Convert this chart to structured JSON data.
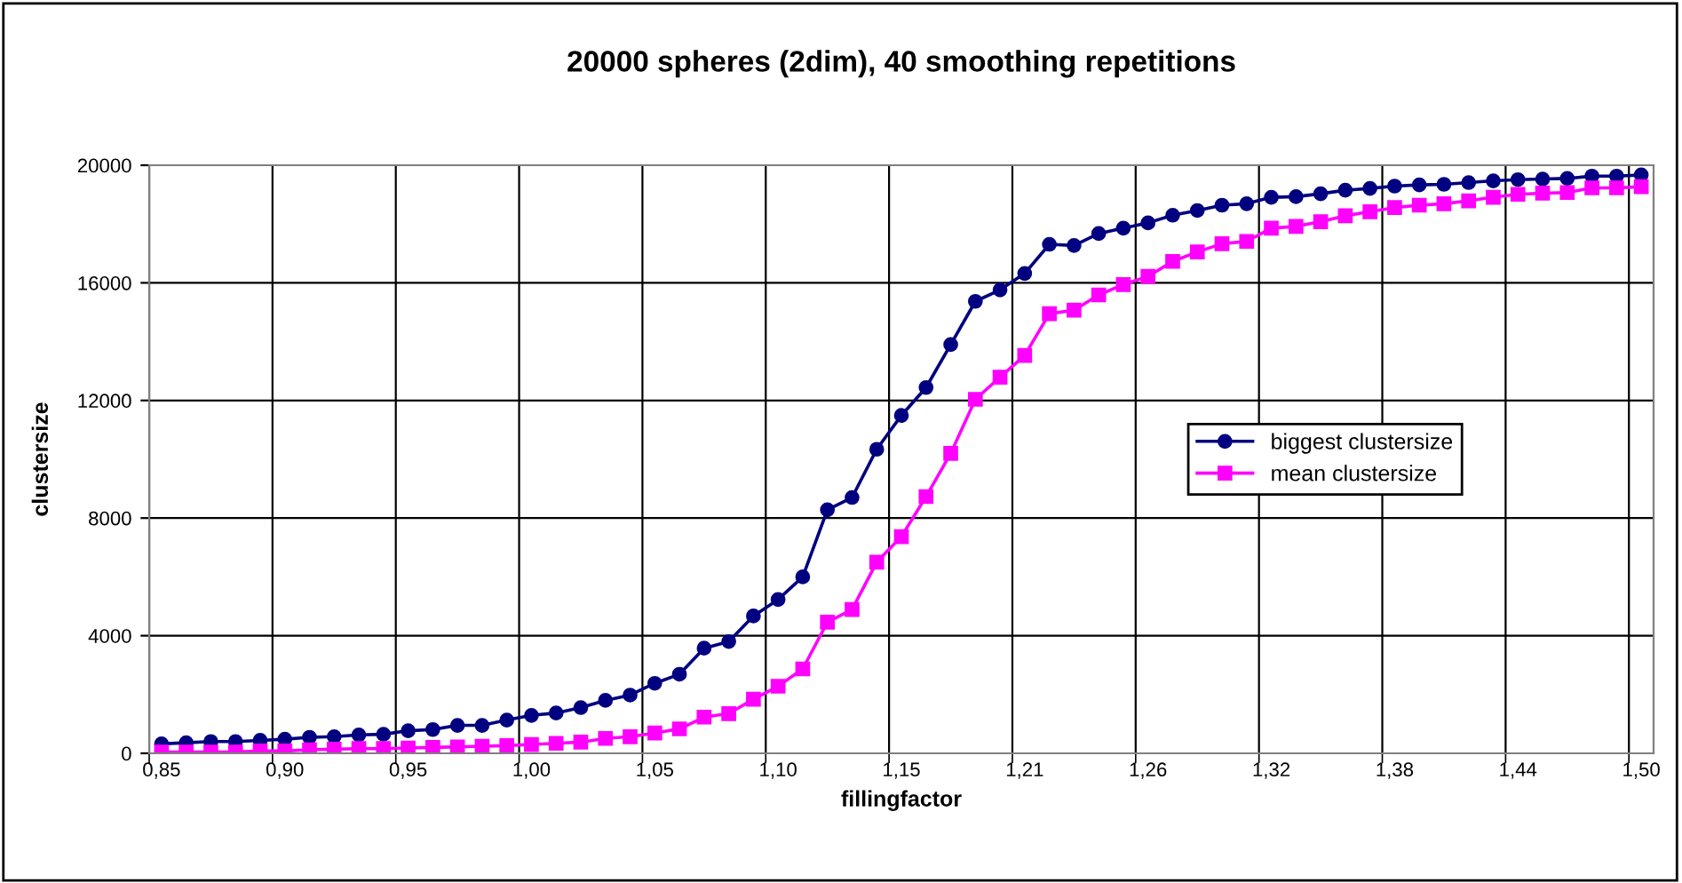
{
  "chart_data": {
    "type": "line",
    "title": "20000 spheres (2dim), 40 smoothing repetitions",
    "xlabel": "fillingfactor",
    "ylabel": "clustersize",
    "categories": [
      "0,85",
      null,
      null,
      null,
      null,
      "0,90",
      null,
      null,
      null,
      null,
      "0,95",
      null,
      null,
      null,
      null,
      "1,00",
      null,
      null,
      null,
      null,
      "1,05",
      null,
      null,
      null,
      null,
      "1,10",
      null,
      null,
      null,
      null,
      "1,15",
      null,
      null,
      null,
      null,
      "1,21",
      null,
      null,
      null,
      null,
      "1,26",
      null,
      null,
      null,
      null,
      "1,32",
      null,
      null,
      null,
      null,
      "1,38",
      null,
      null,
      null,
      null,
      "1,44",
      null,
      null,
      null,
      null,
      "1,50"
    ],
    "series": [
      {
        "name": "biggest clustersize",
        "color": "#000080",
        "marker": "circle",
        "values": [
          320,
          360,
          400,
          400,
          440,
          480,
          545,
          565,
          626,
          646,
          768,
          808,
          950,
          950,
          1130,
          1290,
          1370,
          1555,
          1800,
          1980,
          2380,
          2690,
          3575,
          3800,
          4670,
          5230,
          6000,
          8280,
          8700,
          10340,
          11490,
          12440,
          13900,
          15370,
          15760,
          16320,
          17310,
          17270,
          17675,
          17860,
          18040,
          18300,
          18460,
          18640,
          18690,
          18910,
          18930,
          19030,
          19150,
          19210,
          19290,
          19330,
          19350,
          19410,
          19470,
          19510,
          19530,
          19550,
          19630,
          19630,
          19670
        ]
      },
      {
        "name": "mean clustersize",
        "color": "#ff00ff",
        "marker": "square",
        "values": [
          40,
          40,
          40,
          40,
          80,
          80,
          120,
          140,
          160,
          160,
          180,
          200,
          220,
          240,
          260,
          300,
          340,
          380,
          505,
          565,
          690,
          830,
          1230,
          1350,
          1840,
          2280,
          2870,
          4460,
          4890,
          6500,
          7370,
          8730,
          10200,
          12040,
          12790,
          13530,
          14950,
          15070,
          15590,
          15940,
          16220,
          16730,
          17050,
          17330,
          17410,
          17860,
          17920,
          18080,
          18280,
          18420,
          18560,
          18640,
          18690,
          18790,
          18910,
          19010,
          19050,
          19070,
          19230,
          19230,
          19270
        ]
      }
    ],
    "ylim": [
      0,
      20000
    ],
    "yticks": [
      0,
      4000,
      8000,
      12000,
      16000,
      20000
    ],
    "grid": true,
    "legend": "right",
    "line_style": "solid"
  }
}
